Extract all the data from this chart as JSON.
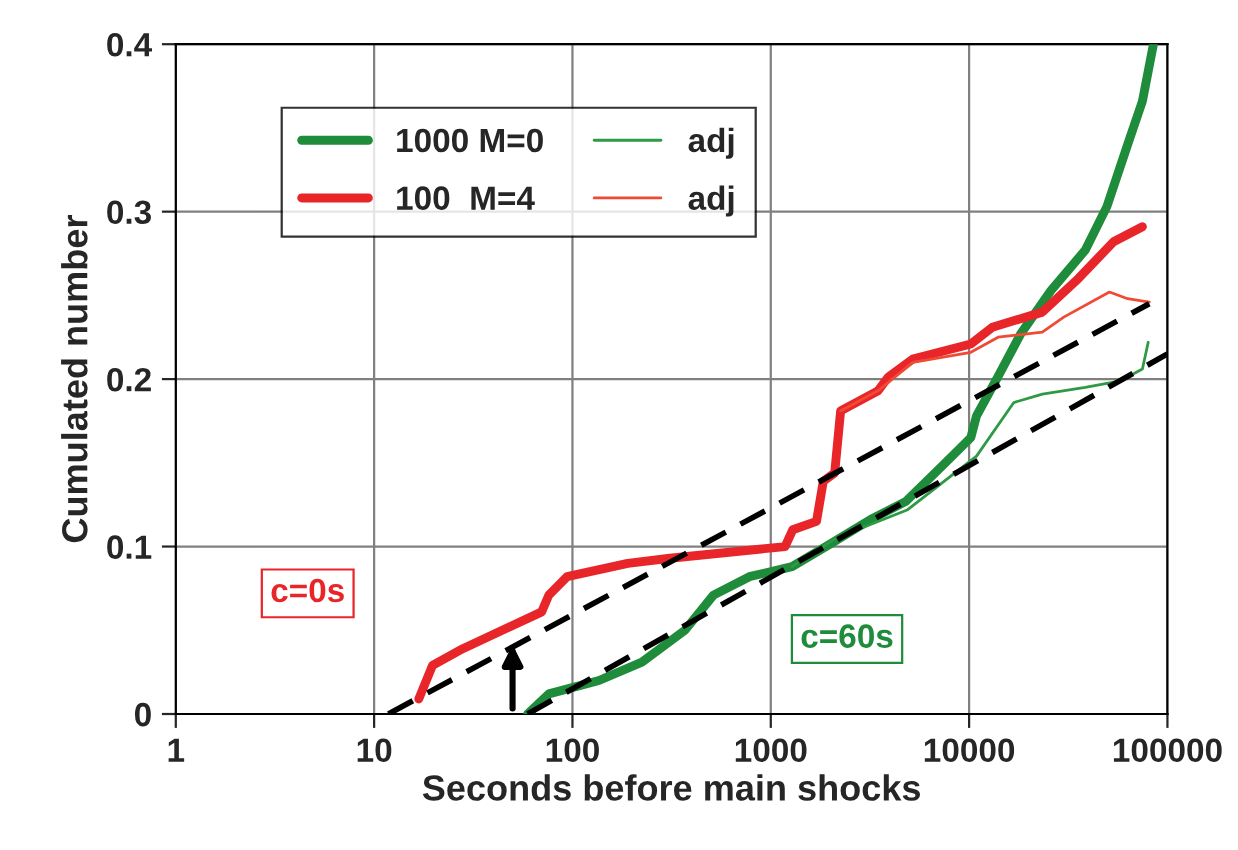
{
  "chart_data": {
    "type": "line",
    "xlabel": "Seconds before main shocks",
    "ylabel": "Cumulated number",
    "log": "x",
    "xlim": [
      1,
      100000
    ],
    "ylim": [
      0,
      0.4
    ],
    "xticks": [
      1,
      10,
      100,
      1000,
      10000,
      100000
    ],
    "yticks": [
      0,
      0.1,
      0.2,
      0.3,
      0.4
    ],
    "grid": true,
    "legend": "top left",
    "line_style": "solid",
    "marker": "none",
    "series": [
      {
        "name": "1000 M=0",
        "color": "#1e8c3a",
        "x": [
          59.4,
          76,
          136,
          224,
          369,
          514,
          780,
          1280,
          1960,
          3170,
          4800,
          7300,
          10200,
          10900,
          14200,
          18200,
          25900,
          38500,
          49500,
          63400,
          74800,
          85000
        ],
        "values": [
          0,
          0.012,
          0.02,
          0.031,
          0.05,
          0.071,
          0.082,
          0.088,
          0.101,
          0.116,
          0.127,
          0.148,
          0.165,
          0.178,
          0.203,
          0.227,
          0.253,
          0.277,
          0.303,
          0.341,
          0.366,
          0.4
        ]
      },
      {
        "name": "100  M=4",
        "color": "#e8262a",
        "x": [
          16.8,
          19.7,
          28,
          70,
          76,
          94,
          190,
          310,
          1180,
          1290,
          1700,
          1840,
          2100,
          2250,
          3470,
          3900,
          5200,
          10200,
          13100,
          23400,
          35500,
          53500,
          74800
        ],
        "values": [
          0.009,
          0.029,
          0.039,
          0.061,
          0.071,
          0.082,
          0.09,
          0.093,
          0.1,
          0.11,
          0.115,
          0.139,
          0.144,
          0.181,
          0.193,
          0.201,
          0.212,
          0.221,
          0.231,
          0.24,
          0.26,
          0.282,
          0.291
        ]
      },
      {
        "name": "adj",
        "color": "#2e9a46",
        "x": [
          1280,
          2130,
          4900,
          10900,
          16800,
          23400,
          38500,
          58000,
          74800,
          80000
        ],
        "values": [
          0.088,
          0.105,
          0.122,
          0.154,
          0.186,
          0.191,
          0.195,
          0.199,
          0.206,
          0.222
        ]
      },
      {
        "name": "adj",
        "color": "#f04a35",
        "x": [
          2250,
          3470,
          5200,
          10200,
          14000,
          23400,
          30000,
          51000,
          63000,
          81000
        ],
        "values": [
          0.181,
          0.193,
          0.21,
          0.216,
          0.225,
          0.228,
          0.237,
          0.252,
          0.248,
          0.246
        ]
      },
      {
        "color": "#000000",
        "line_style": "dashed",
        "x": [
          11.8,
          81000
        ],
        "values": [
          0,
          0.245
        ]
      },
      {
        "color": "#000000",
        "line_style": "dashed",
        "x": [
          59.4,
          100000
        ],
        "values": [
          0,
          0.215
        ]
      }
    ],
    "annotations": [
      "c=0s",
      "c=60s"
    ]
  }
}
